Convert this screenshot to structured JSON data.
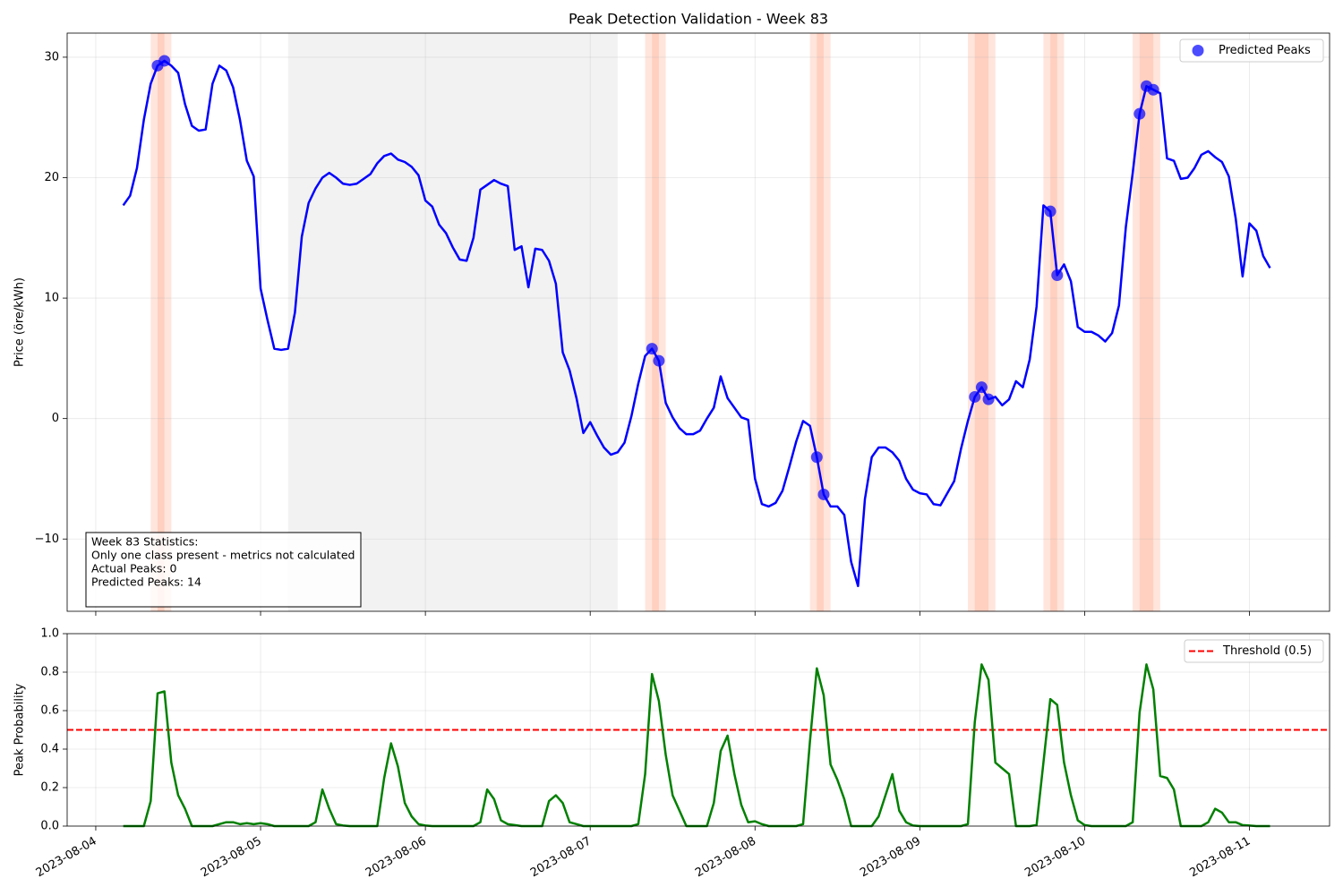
{
  "chart_data": [
    {
      "type": "line",
      "title": "Peak Detection Validation - Week 83",
      "y_label": "Price (öre/kWh)",
      "x": [
        "2023-08-04 04:00",
        "2023-08-04 05:00",
        "2023-08-04 06:00",
        "2023-08-04 07:00",
        "2023-08-04 08:00",
        "2023-08-04 09:00",
        "2023-08-04 10:00",
        "2023-08-04 11:00",
        "2023-08-04 12:00",
        "2023-08-04 13:00",
        "2023-08-04 14:00",
        "2023-08-04 15:00",
        "2023-08-04 16:00",
        "2023-08-04 17:00",
        "2023-08-04 18:00",
        "2023-08-04 19:00",
        "2023-08-04 20:00",
        "2023-08-04 21:00",
        "2023-08-04 22:00",
        "2023-08-04 23:00",
        "2023-08-05 00:00",
        "2023-08-05 01:00",
        "2023-08-05 02:00",
        "2023-08-05 03:00",
        "2023-08-05 04:00",
        "2023-08-05 05:00",
        "2023-08-05 06:00",
        "2023-08-05 07:00",
        "2023-08-05 08:00",
        "2023-08-05 09:00",
        "2023-08-05 10:00",
        "2023-08-05 11:00",
        "2023-08-05 12:00",
        "2023-08-05 13:00",
        "2023-08-05 14:00",
        "2023-08-05 15:00",
        "2023-08-05 16:00",
        "2023-08-05 17:00",
        "2023-08-05 18:00",
        "2023-08-05 19:00",
        "2023-08-05 20:00",
        "2023-08-05 21:00",
        "2023-08-05 22:00",
        "2023-08-05 23:00",
        "2023-08-06 00:00",
        "2023-08-06 01:00",
        "2023-08-06 02:00",
        "2023-08-06 03:00",
        "2023-08-06 04:00",
        "2023-08-06 05:00",
        "2023-08-06 06:00",
        "2023-08-06 07:00",
        "2023-08-06 08:00",
        "2023-08-06 09:00",
        "2023-08-06 10:00",
        "2023-08-06 11:00",
        "2023-08-06 12:00",
        "2023-08-06 13:00",
        "2023-08-06 14:00",
        "2023-08-06 15:00",
        "2023-08-06 16:00",
        "2023-08-06 17:00",
        "2023-08-06 18:00",
        "2023-08-06 19:00",
        "2023-08-06 20:00",
        "2023-08-06 21:00",
        "2023-08-06 22:00",
        "2023-08-06 23:00",
        "2023-08-07 00:00",
        "2023-08-07 01:00",
        "2023-08-07 02:00",
        "2023-08-07 03:00",
        "2023-08-07 04:00",
        "2023-08-07 05:00",
        "2023-08-07 06:00",
        "2023-08-07 07:00",
        "2023-08-07 08:00",
        "2023-08-07 09:00",
        "2023-08-07 10:00",
        "2023-08-07 11:00",
        "2023-08-07 12:00",
        "2023-08-07 13:00",
        "2023-08-07 14:00",
        "2023-08-07 15:00",
        "2023-08-07 16:00",
        "2023-08-07 17:00",
        "2023-08-07 18:00",
        "2023-08-07 19:00",
        "2023-08-07 20:00",
        "2023-08-07 21:00",
        "2023-08-07 22:00",
        "2023-08-07 23:00",
        "2023-08-08 00:00",
        "2023-08-08 01:00",
        "2023-08-08 02:00",
        "2023-08-08 03:00",
        "2023-08-08 04:00",
        "2023-08-08 05:00",
        "2023-08-08 06:00",
        "2023-08-08 07:00",
        "2023-08-08 08:00",
        "2023-08-08 09:00",
        "2023-08-08 10:00",
        "2023-08-08 11:00",
        "2023-08-08 12:00",
        "2023-08-08 13:00",
        "2023-08-08 14:00",
        "2023-08-08 15:00",
        "2023-08-08 16:00",
        "2023-08-08 17:00",
        "2023-08-08 18:00",
        "2023-08-08 19:00",
        "2023-08-08 20:00",
        "2023-08-08 21:00",
        "2023-08-08 22:00",
        "2023-08-08 23:00",
        "2023-08-09 00:00",
        "2023-08-09 01:00",
        "2023-08-09 02:00",
        "2023-08-09 03:00",
        "2023-08-09 04:00",
        "2023-08-09 05:00",
        "2023-08-09 06:00",
        "2023-08-09 07:00",
        "2023-08-09 08:00",
        "2023-08-09 09:00",
        "2023-08-09 10:00",
        "2023-08-09 11:00",
        "2023-08-09 12:00",
        "2023-08-09 13:00",
        "2023-08-09 14:00",
        "2023-08-09 15:00",
        "2023-08-09 16:00",
        "2023-08-09 17:00",
        "2023-08-09 18:00",
        "2023-08-09 19:00",
        "2023-08-09 20:00",
        "2023-08-09 21:00",
        "2023-08-09 22:00",
        "2023-08-09 23:00",
        "2023-08-10 00:00",
        "2023-08-10 01:00",
        "2023-08-10 02:00",
        "2023-08-10 03:00",
        "2023-08-10 04:00",
        "2023-08-10 05:00",
        "2023-08-10 06:00",
        "2023-08-10 07:00",
        "2023-08-10 08:00",
        "2023-08-10 09:00",
        "2023-08-10 10:00",
        "2023-08-10 11:00",
        "2023-08-10 12:00",
        "2023-08-10 13:00",
        "2023-08-10 14:00",
        "2023-08-10 15:00",
        "2023-08-10 16:00",
        "2023-08-10 17:00",
        "2023-08-10 18:00",
        "2023-08-10 19:00",
        "2023-08-10 20:00",
        "2023-08-10 21:00",
        "2023-08-10 22:00",
        "2023-08-10 23:00",
        "2023-08-11 00:00",
        "2023-08-11 01:00",
        "2023-08-11 02:00",
        "2023-08-11 03:00"
      ],
      "values": [
        17.7,
        18.5,
        20.8,
        24.8,
        27.8,
        29.3,
        29.7,
        29.3,
        28.7,
        26.1,
        24.3,
        23.9,
        24.0,
        27.8,
        29.3,
        28.9,
        27.5,
        24.8,
        21.4,
        20.1,
        10.8,
        8.2,
        5.8,
        5.7,
        5.8,
        8.8,
        15.1,
        17.9,
        19.1,
        20.0,
        20.4,
        20.0,
        19.5,
        19.4,
        19.5,
        19.9,
        20.3,
        21.2,
        21.8,
        22.0,
        21.5,
        21.3,
        20.9,
        20.2,
        18.1,
        17.6,
        16.1,
        15.4,
        14.2,
        13.2,
        13.1,
        15.0,
        19.0,
        19.4,
        19.8,
        19.5,
        19.3,
        14.0,
        14.3,
        10.9,
        14.1,
        14.0,
        13.1,
        11.2,
        5.5,
        4.0,
        1.7,
        -1.2,
        -0.3,
        -1.4,
        -2.4,
        -3.0,
        -2.8,
        -2.0,
        0.2,
        2.9,
        5.2,
        5.8,
        4.8,
        1.3,
        0.1,
        -0.8,
        -1.3,
        -1.3,
        -1.0,
        0.0,
        0.9,
        3.5,
        1.7,
        0.9,
        0.1,
        -0.1,
        -5.0,
        -7.1,
        -7.3,
        -7.0,
        -6.0,
        -4.0,
        -1.9,
        -0.2,
        -0.6,
        -3.2,
        -6.3,
        -7.3,
        -7.3,
        -8.0,
        -11.9,
        -13.9,
        -6.7,
        -3.2,
        -2.4,
        -2.4,
        -2.8,
        -3.5,
        -5.0,
        -5.9,
        -6.2,
        -6.3,
        -7.1,
        -7.2,
        -6.2,
        -5.2,
        -2.5,
        -0.2,
        1.8,
        2.6,
        1.6,
        1.8,
        1.1,
        1.6,
        3.1,
        2.6,
        4.9,
        9.3,
        17.7,
        17.2,
        11.9,
        12.8,
        11.4,
        7.6,
        7.2,
        7.2,
        6.9,
        6.4,
        7.1,
        9.4,
        15.9,
        20.4,
        25.3,
        27.6,
        27.3,
        27.0,
        21.6,
        21.4,
        19.9,
        20.0,
        20.8,
        21.9,
        22.2,
        21.7,
        21.3,
        20.1,
        16.6,
        11.8,
        16.2,
        15.6,
        13.5,
        12.5
      ],
      "color": "#0000ff",
      "scatter": {
        "name": "Predicted Peaks",
        "color": "#0000ff",
        "x": [
          "2023-08-04 09:00",
          "2023-08-04 10:00",
          "2023-08-07 09:00",
          "2023-08-07 10:00",
          "2023-08-08 09:00",
          "2023-08-08 10:00",
          "2023-08-09 08:00",
          "2023-08-09 09:00",
          "2023-08-09 10:00",
          "2023-08-09 19:00",
          "2023-08-09 20:00",
          "2023-08-10 08:00",
          "2023-08-10 09:00",
          "2023-08-10 10:00"
        ],
        "values": [
          29.3,
          29.7,
          5.8,
          4.8,
          -3.2,
          -6.3,
          1.8,
          2.6,
          1.6,
          17.2,
          11.9,
          25.3,
          27.6,
          27.3
        ]
      },
      "peak_span_color": "#ff7f50",
      "weekend_spans": [
        [
          "2023-08-05 04:00",
          "2023-08-06 04:00"
        ],
        [
          "2023-08-06 04:00",
          "2023-08-07 04:00"
        ]
      ],
      "weekend_color": "#d3d3d3",
      "stats_box": [
        "Week 83 Statistics:",
        "Only one class present - metrics not calculated",
        "Actual Peaks: 0",
        "Predicted Peaks: 14"
      ],
      "xlim": [
        "2023-08-03 19:50",
        "2023-08-11 11:40"
      ],
      "xticks": [
        "2023-08-04",
        "2023-08-05",
        "2023-08-06",
        "2023-08-07",
        "2023-08-08",
        "2023-08-09",
        "2023-08-10",
        "2023-08-11"
      ],
      "ylim": [
        -16,
        32
      ],
      "yticks": [
        {
          "value": -10,
          "label": "−10"
        },
        0,
        10,
        20,
        30
      ],
      "grid": true,
      "legend": "upper right"
    },
    {
      "type": "line",
      "y_label": "Peak Probability",
      "x": [
        "2023-08-04 04:00",
        "2023-08-04 05:00",
        "2023-08-04 06:00",
        "2023-08-04 07:00",
        "2023-08-04 08:00",
        "2023-08-04 09:00",
        "2023-08-04 10:00",
        "2023-08-04 11:00",
        "2023-08-04 12:00",
        "2023-08-04 13:00",
        "2023-08-04 14:00",
        "2023-08-04 15:00",
        "2023-08-04 16:00",
        "2023-08-04 17:00",
        "2023-08-04 18:00",
        "2023-08-04 19:00",
        "2023-08-04 20:00",
        "2023-08-04 21:00",
        "2023-08-04 22:00",
        "2023-08-04 23:00",
        "2023-08-05 00:00",
        "2023-08-05 01:00",
        "2023-08-05 02:00",
        "2023-08-05 03:00",
        "2023-08-05 04:00",
        "2023-08-05 05:00",
        "2023-08-05 06:00",
        "2023-08-05 07:00",
        "2023-08-05 08:00",
        "2023-08-05 09:00",
        "2023-08-05 10:00",
        "2023-08-05 11:00",
        "2023-08-05 12:00",
        "2023-08-05 13:00",
        "2023-08-05 14:00",
        "2023-08-05 15:00",
        "2023-08-05 16:00",
        "2023-08-05 17:00",
        "2023-08-05 18:00",
        "2023-08-05 19:00",
        "2023-08-05 20:00",
        "2023-08-05 21:00",
        "2023-08-05 22:00",
        "2023-08-05 23:00",
        "2023-08-06 00:00",
        "2023-08-06 01:00",
        "2023-08-06 02:00",
        "2023-08-06 03:00",
        "2023-08-06 04:00",
        "2023-08-06 05:00",
        "2023-08-06 06:00",
        "2023-08-06 07:00",
        "2023-08-06 08:00",
        "2023-08-06 09:00",
        "2023-08-06 10:00",
        "2023-08-06 11:00",
        "2023-08-06 12:00",
        "2023-08-06 13:00",
        "2023-08-06 14:00",
        "2023-08-06 15:00",
        "2023-08-06 16:00",
        "2023-08-06 17:00",
        "2023-08-06 18:00",
        "2023-08-06 19:00",
        "2023-08-06 20:00",
        "2023-08-06 21:00",
        "2023-08-06 22:00",
        "2023-08-06 23:00",
        "2023-08-07 00:00",
        "2023-08-07 01:00",
        "2023-08-07 02:00",
        "2023-08-07 03:00",
        "2023-08-07 04:00",
        "2023-08-07 05:00",
        "2023-08-07 06:00",
        "2023-08-07 07:00",
        "2023-08-07 08:00",
        "2023-08-07 09:00",
        "2023-08-07 10:00",
        "2023-08-07 11:00",
        "2023-08-07 12:00",
        "2023-08-07 13:00",
        "2023-08-07 14:00",
        "2023-08-07 15:00",
        "2023-08-07 16:00",
        "2023-08-07 17:00",
        "2023-08-07 18:00",
        "2023-08-07 19:00",
        "2023-08-07 20:00",
        "2023-08-07 21:00",
        "2023-08-07 22:00",
        "2023-08-07 23:00",
        "2023-08-08 00:00",
        "2023-08-08 01:00",
        "2023-08-08 02:00",
        "2023-08-08 03:00",
        "2023-08-08 04:00",
        "2023-08-08 05:00",
        "2023-08-08 06:00",
        "2023-08-08 07:00",
        "2023-08-08 08:00",
        "2023-08-08 09:00",
        "2023-08-08 10:00",
        "2023-08-08 11:00",
        "2023-08-08 12:00",
        "2023-08-08 13:00",
        "2023-08-08 14:00",
        "2023-08-08 15:00",
        "2023-08-08 16:00",
        "2023-08-08 17:00",
        "2023-08-08 18:00",
        "2023-08-08 19:00",
        "2023-08-08 20:00",
        "2023-08-08 21:00",
        "2023-08-08 22:00",
        "2023-08-08 23:00",
        "2023-08-09 00:00",
        "2023-08-09 01:00",
        "2023-08-09 02:00",
        "2023-08-09 03:00",
        "2023-08-09 04:00",
        "2023-08-09 05:00",
        "2023-08-09 06:00",
        "2023-08-09 07:00",
        "2023-08-09 08:00",
        "2023-08-09 09:00",
        "2023-08-09 10:00",
        "2023-08-09 11:00",
        "2023-08-09 12:00",
        "2023-08-09 13:00",
        "2023-08-09 14:00",
        "2023-08-09 15:00",
        "2023-08-09 16:00",
        "2023-08-09 17:00",
        "2023-08-09 18:00",
        "2023-08-09 19:00",
        "2023-08-09 20:00",
        "2023-08-09 21:00",
        "2023-08-09 22:00",
        "2023-08-09 23:00",
        "2023-08-10 00:00",
        "2023-08-10 01:00",
        "2023-08-10 02:00",
        "2023-08-10 03:00",
        "2023-08-10 04:00",
        "2023-08-10 05:00",
        "2023-08-10 06:00",
        "2023-08-10 07:00",
        "2023-08-10 08:00",
        "2023-08-10 09:00",
        "2023-08-10 10:00",
        "2023-08-10 11:00",
        "2023-08-10 12:00",
        "2023-08-10 13:00",
        "2023-08-10 14:00",
        "2023-08-10 15:00",
        "2023-08-10 16:00",
        "2023-08-10 17:00",
        "2023-08-10 18:00",
        "2023-08-10 19:00",
        "2023-08-10 20:00",
        "2023-08-10 21:00",
        "2023-08-10 22:00",
        "2023-08-10 23:00",
        "2023-08-11 00:00",
        "2023-08-11 01:00",
        "2023-08-11 02:00",
        "2023-08-11 03:00"
      ],
      "values": [
        0,
        0,
        0,
        0,
        0.13,
        0.69,
        0.7,
        0.33,
        0.16,
        0.09,
        0,
        0,
        0,
        0,
        0.01,
        0.02,
        0.02,
        0.01,
        0.015,
        0.01,
        0.015,
        0.01,
        0,
        0,
        0,
        0,
        0,
        0,
        0.02,
        0.19,
        0.09,
        0.01,
        0.003,
        0,
        0,
        0,
        0,
        0,
        0.25,
        0.43,
        0.31,
        0.12,
        0.05,
        0.01,
        0.003,
        0,
        0,
        0,
        0,
        0,
        0,
        0,
        0.02,
        0.19,
        0.14,
        0.03,
        0.01,
        0.005,
        0,
        0,
        0,
        0,
        0.13,
        0.16,
        0.12,
        0.02,
        0.01,
        0,
        0,
        0,
        0,
        0,
        0,
        0,
        0,
        0.01,
        0.27,
        0.79,
        0.65,
        0.37,
        0.16,
        0.08,
        0,
        0,
        0,
        0,
        0.12,
        0.39,
        0.47,
        0.27,
        0.11,
        0.02,
        0.025,
        0.01,
        0,
        0,
        0,
        0,
        0,
        0.01,
        0.44,
        0.82,
        0.68,
        0.32,
        0.24,
        0.14,
        0,
        0,
        0,
        0,
        0.05,
        0.16,
        0.27,
        0.08,
        0.02,
        0.003,
        0,
        0,
        0,
        0,
        0,
        0,
        0,
        0.01,
        0.54,
        0.84,
        0.76,
        0.33,
        0.3,
        0.27,
        0,
        0,
        0,
        0.005,
        0.33,
        0.66,
        0.63,
        0.33,
        0.16,
        0.03,
        0.005,
        0,
        0,
        0,
        0,
        0,
        0,
        0.02,
        0.59,
        0.84,
        0.71,
        0.26,
        0.25,
        0.19,
        0,
        0,
        0,
        0,
        0.02,
        0.09,
        0.07,
        0.02,
        0.02,
        0.005,
        0.003,
        0,
        0,
        0
      ],
      "color": "#008000",
      "threshold": {
        "name": "Threshold (0.5)",
        "value": 0.5,
        "color": "#ff0000"
      },
      "xlim": [
        "2023-08-03 19:50",
        "2023-08-11 11:40"
      ],
      "xticks": [
        "2023-08-04",
        "2023-08-05",
        "2023-08-06",
        "2023-08-07",
        "2023-08-08",
        "2023-08-09",
        "2023-08-10",
        "2023-08-11"
      ],
      "ylim": [
        0,
        1
      ],
      "yticks": [
        {
          "value": 0,
          "label": "0.0"
        },
        0.2,
        0.4,
        0.6,
        0.8,
        {
          "value": 1,
          "label": "1.0"
        }
      ],
      "grid": true,
      "legend": "upper right"
    }
  ]
}
